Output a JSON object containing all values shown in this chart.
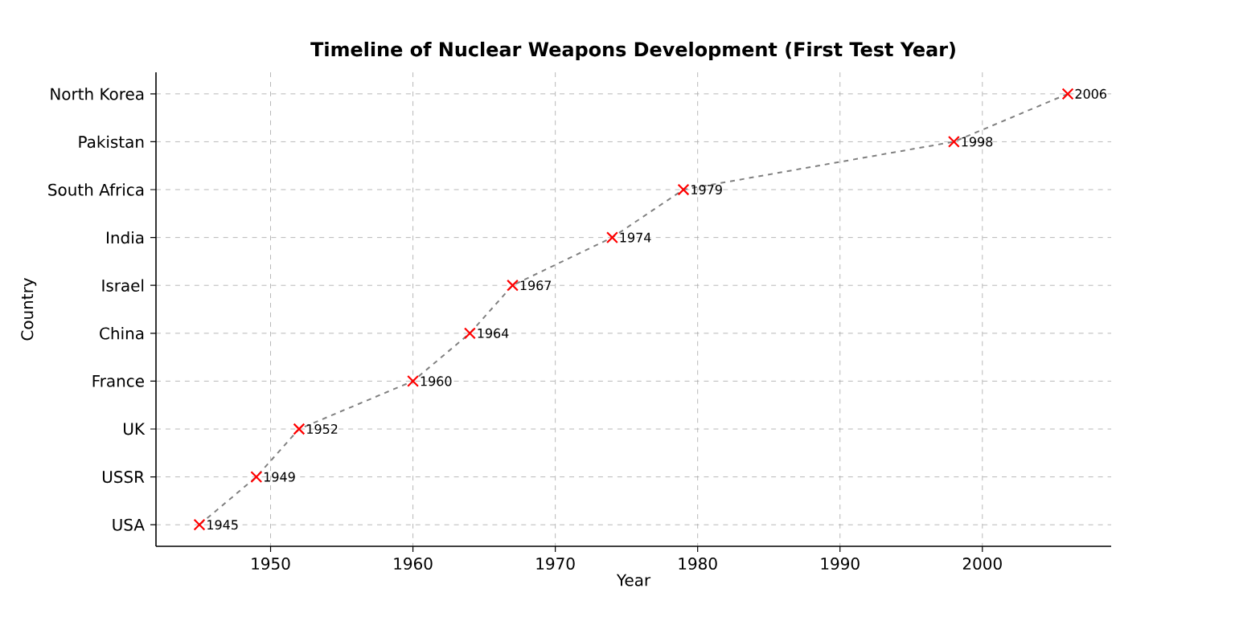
{
  "chart_data": {
    "type": "line",
    "orientation": "horizontal",
    "title": "Timeline of Nuclear Weapons Development (First Test Year)",
    "xlabel": "Year",
    "ylabel": "Country",
    "categories": [
      "North Korea",
      "Pakistan",
      "South Africa",
      "India",
      "Israel",
      "China",
      "France",
      "UK",
      "USSR",
      "USA"
    ],
    "series": [
      {
        "color": "#ff0000",
        "values": [
          2006,
          1998,
          1979,
          1974,
          1967,
          1964,
          1960,
          1952,
          1949,
          1945
        ]
      }
    ],
    "xlim": [
      1941.95,
      2009.05
    ],
    "xticks": [
      1950,
      1960,
      1970,
      1980,
      1990,
      2000
    ],
    "data_labels": true,
    "grid": true,
    "marker": "cross",
    "line_style": "dashed"
  }
}
